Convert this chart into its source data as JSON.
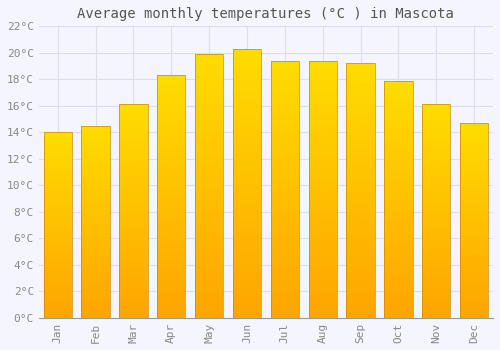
{
  "title": "Average monthly temperatures (°C ) in Mascota",
  "months": [
    "Jan",
    "Feb",
    "Mar",
    "Apr",
    "May",
    "Jun",
    "Jul",
    "Aug",
    "Sep",
    "Oct",
    "Nov",
    "Dec"
  ],
  "values": [
    14.0,
    14.5,
    16.1,
    18.3,
    19.9,
    20.3,
    19.4,
    19.4,
    19.2,
    17.9,
    16.1,
    14.7
  ],
  "bar_color_top": "#FFD966",
  "bar_color_bottom": "#FFA500",
  "bar_edge_color": "#CC8800",
  "ylim": [
    0,
    22
  ],
  "ytick_step": 2,
  "background_color": "#f5f5ff",
  "plot_bg_color": "#f5f5ff",
  "grid_color": "#ddddee",
  "title_fontsize": 10,
  "tick_fontsize": 8,
  "tick_label_color": "#888888",
  "title_color": "#555555"
}
